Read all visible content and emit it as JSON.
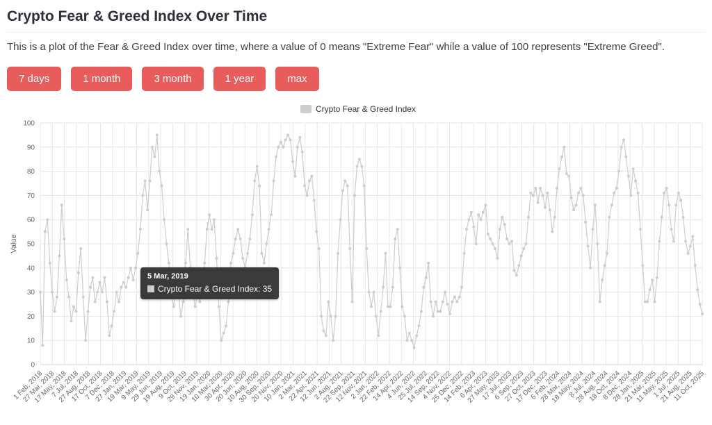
{
  "page": {
    "title": "Crypto Fear & Greed Index Over Time",
    "description": "This is a plot of the Fear & Greed Index over time, where a value of 0 means \"Extreme Fear\" while a value of 100 represents \"Extreme Greed\"."
  },
  "range_buttons": [
    {
      "label": "7 days"
    },
    {
      "label": "1 month"
    },
    {
      "label": "3 month"
    },
    {
      "label": "1 year"
    },
    {
      "label": "max"
    }
  ],
  "colors": {
    "accent": "#e85c5c",
    "series": "#cccccc",
    "grid": "#e6e6e6",
    "axis_text": "#666666",
    "tooltip_bg": "#323232"
  },
  "tooltip": {
    "date": "5 Mar, 2019",
    "series_label": "Crypto Fear & Greed Index",
    "value": 35,
    "text": "Crypto Fear & Greed Index: 35"
  },
  "chart_data": {
    "type": "line",
    "title": "",
    "legend": [
      "Crypto Fear & Greed Index"
    ],
    "legend_position": "top-center",
    "grid": true,
    "xlabel": "",
    "ylabel": "Value",
    "ylim": [
      0,
      100
    ],
    "y_ticks": [
      0,
      10,
      20,
      30,
      40,
      50,
      60,
      70,
      80,
      90,
      100
    ],
    "x_range": [
      "1 Feb, 2018",
      "11 Oct, 2025"
    ],
    "x_tick_labels": [
      "1 Feb, 2018",
      "27 Mar, 2018",
      "17 May, 2018",
      "7 Jul, 2018",
      "27 Aug, 2018",
      "17 Oct, 2018",
      "7 Dec, 2018",
      "27 Jan, 2019",
      "19 Mar, 2019",
      "9 May, 2019",
      "29 Jun, 2019",
      "19 Aug, 2019",
      "9 Oct, 2019",
      "29 Nov, 2019",
      "19 Jan, 2020",
      "10 Mar, 2020",
      "30 Apr, 2020",
      "20 Jun, 2020",
      "10 Aug, 2020",
      "30 Sep, 2020",
      "20 Nov, 2020",
      "10 Jan, 2021",
      "2 Mar, 2021",
      "22 Apr, 2021",
      "12 Jun, 2021",
      "2 Aug, 2021",
      "22 Sep, 2021",
      "12 Nov, 2021",
      "2 Jan, 2022",
      "22 Feb, 2022",
      "14 Apr, 2022",
      "4 Jun, 2022",
      "25 Jul, 2022",
      "14 Sep, 2022",
      "4 Nov, 2022",
      "25 Dec, 2022",
      "14 Feb, 2023",
      "6 Apr, 2023",
      "27 May, 2023",
      "17 Jul, 2023",
      "6 Sep, 2023",
      "27 Oct, 2023",
      "17 Dec, 2023",
      "6 Feb, 2024",
      "28 Mar, 2024",
      "18 May, 2024",
      "8 Jul, 2024",
      "28 Aug, 2024",
      "18 Oct, 2024",
      "8 Dec, 2024",
      "28 Jan, 2025",
      "21 Mar, 2025",
      "11 May, 2025",
      "1 Jul, 2025",
      "21 Aug, 2025",
      "11 Oct, 2025"
    ],
    "series": [
      {
        "name": "Crypto Fear & Greed Index",
        "color": "#cccccc",
        "sampling": "approx. every 10 days, Feb 2018 - Oct 2025",
        "values": [
          30,
          8,
          55,
          60,
          42,
          30,
          22,
          28,
          45,
          66,
          52,
          35,
          28,
          18,
          24,
          22,
          38,
          48,
          28,
          10,
          22,
          32,
          36,
          26,
          30,
          34,
          30,
          36,
          26,
          12,
          16,
          22,
          30,
          26,
          32,
          34,
          32,
          36,
          40,
          35,
          40,
          46,
          56,
          70,
          76,
          64,
          76,
          90,
          86,
          95,
          80,
          74,
          60,
          50,
          42,
          30,
          24,
          36,
          30,
          20,
          26,
          42,
          56,
          40,
          30,
          24,
          30,
          26,
          32,
          42,
          56,
          62,
          56,
          60,
          44,
          24,
          10,
          13,
          16,
          26,
          42,
          46,
          52,
          56,
          52,
          44,
          40,
          46,
          52,
          62,
          76,
          82,
          74,
          46,
          42,
          50,
          56,
          62,
          76,
          86,
          90,
          92,
          90,
          93,
          95,
          93,
          84,
          78,
          90,
          94,
          88,
          74,
          70,
          76,
          78,
          68,
          55,
          48,
          20,
          14,
          12,
          26,
          20,
          10,
          20,
          46,
          60,
          72,
          76,
          74,
          48,
          26,
          70,
          82,
          85,
          82,
          74,
          48,
          30,
          24,
          30,
          20,
          12,
          22,
          32,
          46,
          24,
          24,
          32,
          52,
          56,
          40,
          24,
          20,
          10,
          13,
          10,
          7,
          12,
          16,
          22,
          32,
          36,
          42,
          26,
          20,
          26,
          22,
          22,
          26,
          30,
          25,
          21,
          26,
          28,
          26,
          28,
          32,
          46,
          56,
          60,
          63,
          57,
          50,
          62,
          60,
          63,
          66,
          54,
          52,
          50,
          48,
          44,
          56,
          61,
          58,
          52,
          50,
          51,
          39,
          37,
          41,
          45,
          48,
          50,
          61,
          71,
          70,
          73,
          67,
          73,
          70,
          65,
          71,
          64,
          55,
          61,
          73,
          81,
          86,
          90,
          79,
          78,
          69,
          64,
          66,
          71,
          73,
          70,
          59,
          49,
          40,
          56,
          66,
          50,
          26,
          35,
          41,
          46,
          61,
          66,
          71,
          73,
          80,
          90,
          93,
          86,
          78,
          70,
          81,
          76,
          71,
          56,
          41,
          26,
          26,
          31,
          35,
          26,
          36,
          51,
          61,
          71,
          73,
          66,
          56,
          51,
          66,
          71,
          68,
          61,
          51,
          46,
          49,
          53,
          41,
          31,
          25,
          21
        ]
      }
    ]
  }
}
